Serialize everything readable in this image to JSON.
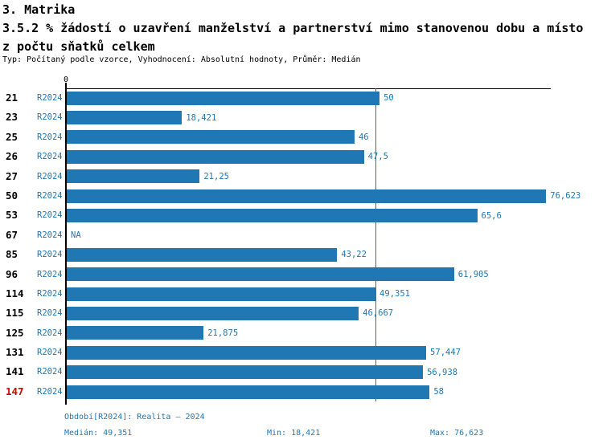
{
  "header": {
    "section": "3. Matrika",
    "title_line1": "3.5.2 % žádostí o uzavření manželství a partnerství mimo stanovenou dobu a místo",
    "title_line2": "z počtu sňatků celkem",
    "subtitle": "Typ: Počítaný podle vzorce, Vyhodnocení: Absolutní hodnoty, Průměr: Medián"
  },
  "chart_data": {
    "type": "bar",
    "orientation": "horizontal",
    "axis_zero_label": "0",
    "axis_max": 77.1,
    "grid": false,
    "median_value": 49.351,
    "stats": {
      "median": 49.351,
      "min": 18.421,
      "max": 76.623
    },
    "colors": {
      "bar": "#1f77b4",
      "highlight_row": "#d40000",
      "text_blue": "#1f77b4"
    },
    "rows": [
      {
        "id": "21",
        "period": "R2024",
        "value": 50,
        "label": "50",
        "highlight": false
      },
      {
        "id": "23",
        "period": "R2024",
        "value": 18.421,
        "label": "18,421",
        "highlight": false
      },
      {
        "id": "25",
        "period": "R2024",
        "value": 46,
        "label": "46",
        "highlight": false
      },
      {
        "id": "26",
        "period": "R2024",
        "value": 47.5,
        "label": "47,5",
        "highlight": false
      },
      {
        "id": "27",
        "period": "R2024",
        "value": 21.25,
        "label": "21,25",
        "highlight": false
      },
      {
        "id": "50",
        "period": "R2024",
        "value": 76.623,
        "label": "76,623",
        "highlight": false
      },
      {
        "id": "53",
        "period": "R2024",
        "value": 65.6,
        "label": "65,6",
        "highlight": false
      },
      {
        "id": "67",
        "period": "R2024",
        "value": null,
        "label": "NA",
        "highlight": false
      },
      {
        "id": "85",
        "period": "R2024",
        "value": 43.22,
        "label": "43,22",
        "highlight": false
      },
      {
        "id": "96",
        "period": "R2024",
        "value": 61.905,
        "label": "61,905",
        "highlight": false
      },
      {
        "id": "114",
        "period": "R2024",
        "value": 49.351,
        "label": "49,351",
        "highlight": false
      },
      {
        "id": "115",
        "period": "R2024",
        "value": 46.667,
        "label": "46,667",
        "highlight": false
      },
      {
        "id": "125",
        "period": "R2024",
        "value": 21.875,
        "label": "21,875",
        "highlight": false
      },
      {
        "id": "131",
        "period": "R2024",
        "value": 57.447,
        "label": "57,447",
        "highlight": false
      },
      {
        "id": "141",
        "period": "R2024",
        "value": 56.938,
        "label": "56,938",
        "highlight": false
      },
      {
        "id": "147",
        "period": "R2024",
        "value": 58,
        "label": "58",
        "highlight": true
      }
    ]
  },
  "footer": {
    "period_line": "Období[R2024]: Realita – 2024",
    "median": "Medián: 49,351",
    "min": "Min: 18,421",
    "max": "Max: 76,623"
  }
}
